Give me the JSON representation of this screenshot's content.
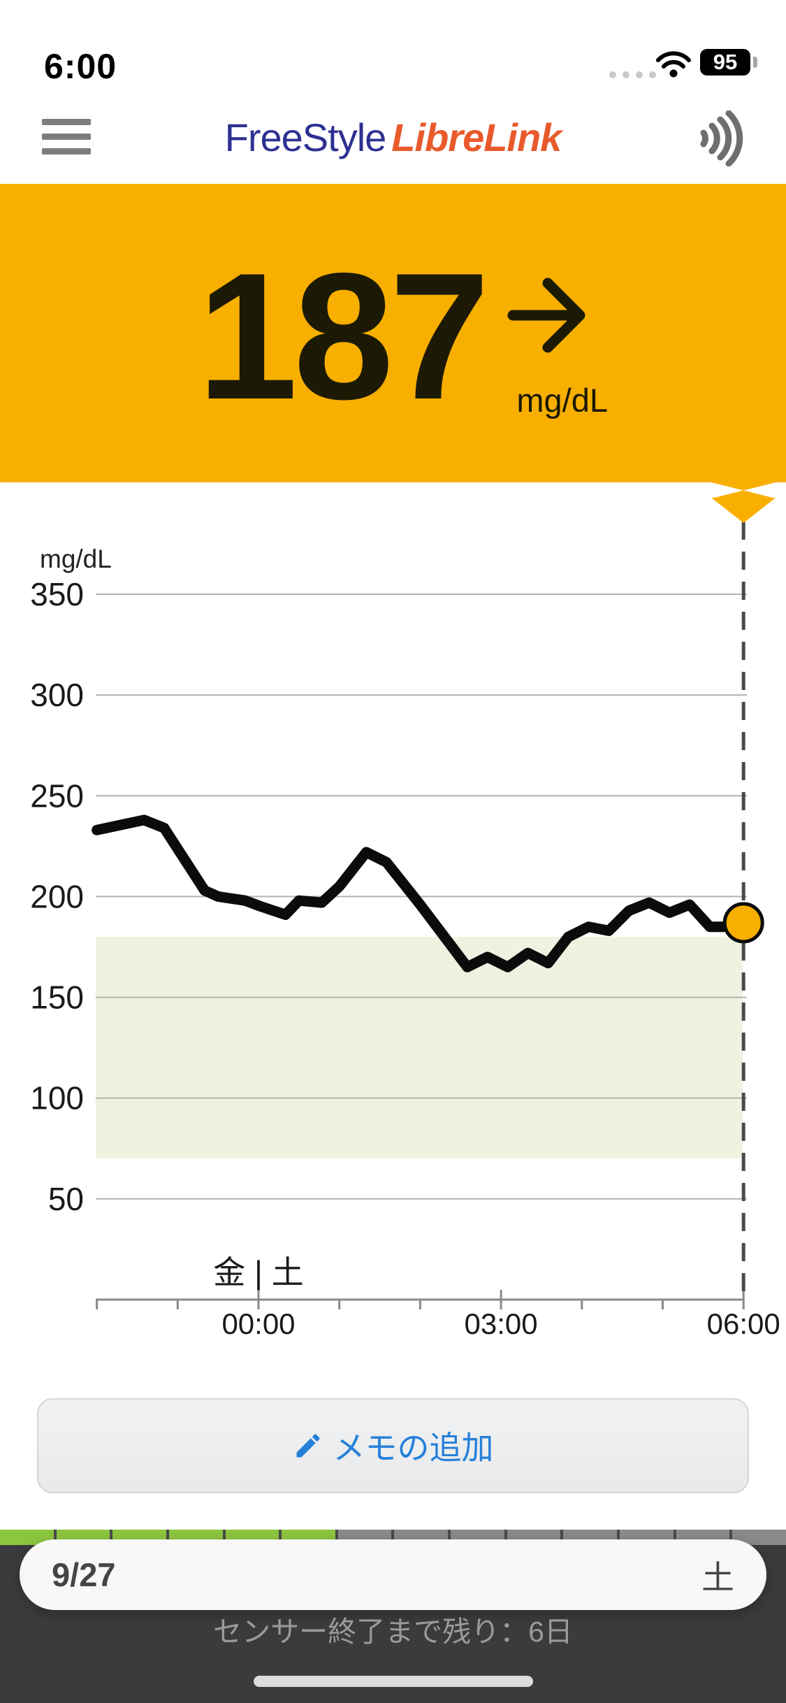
{
  "status_bar": {
    "time": "6:00",
    "battery": "95"
  },
  "header": {
    "brand_primary": "FreeStyle",
    "brand_secondary": "LibreLink"
  },
  "reading": {
    "value": "187",
    "unit": "mg/dL",
    "trend": "steady-right-arrow"
  },
  "colors": {
    "accent": "#f9af00",
    "target_band": "#edf3e0",
    "line": "#0b0b0b",
    "grid": "#b3b3b3",
    "dashed": "#4a4a4a",
    "note_blue": "#2680d9",
    "seg_green": "#8cc63f",
    "seg_gray": "#8a8a8a"
  },
  "chart_data": {
    "type": "line",
    "title": "",
    "ylabel": "mg/dL",
    "unit_label": "mg/dL",
    "y_ticks": [
      350,
      300,
      250,
      200,
      150,
      100,
      50
    ],
    "ylim": [
      40,
      370
    ],
    "x_range_hours": [
      -2,
      6
    ],
    "x_tick_labels": [
      {
        "label": "00:00",
        "t": "00:00"
      },
      {
        "label": "03:00",
        "t": "03:00"
      },
      {
        "label": "06:00",
        "t": "06:00"
      }
    ],
    "day_boundary_label": "金 | 土",
    "day_boundary_t": "00:00",
    "grid": true,
    "legend": "none",
    "target_range": {
      "low": 70,
      "high": 180
    },
    "series": [
      {
        "name": "glucose",
        "points": [
          {
            "t": "22:00",
            "v": 233
          },
          {
            "t": "22:35",
            "v": 238
          },
          {
            "t": "22:50",
            "v": 234
          },
          {
            "t": "23:20",
            "v": 203
          },
          {
            "t": "23:30",
            "v": 200
          },
          {
            "t": "23:50",
            "v": 198
          },
          {
            "t": "00:02",
            "v": 195
          },
          {
            "t": "00:20",
            "v": 191
          },
          {
            "t": "00:30",
            "v": 198
          },
          {
            "t": "00:47",
            "v": 197
          },
          {
            "t": "01:00",
            "v": 205
          },
          {
            "t": "01:20",
            "v": 222
          },
          {
            "t": "01:35",
            "v": 217
          },
          {
            "t": "02:00",
            "v": 196
          },
          {
            "t": "02:35",
            "v": 165
          },
          {
            "t": "02:50",
            "v": 170
          },
          {
            "t": "03:05",
            "v": 165
          },
          {
            "t": "03:20",
            "v": 172
          },
          {
            "t": "03:35",
            "v": 167
          },
          {
            "t": "03:50",
            "v": 180
          },
          {
            "t": "04:05",
            "v": 185
          },
          {
            "t": "04:20",
            "v": 183
          },
          {
            "t": "04:35",
            "v": 193
          },
          {
            "t": "04:50",
            "v": 197
          },
          {
            "t": "05:05",
            "v": 192
          },
          {
            "t": "05:20",
            "v": 196
          },
          {
            "t": "05:35",
            "v": 185
          },
          {
            "t": "05:45",
            "v": 185
          },
          {
            "t": "06:00",
            "v": 187
          }
        ]
      }
    ],
    "current_point": {
      "t": "06:00",
      "v": 187
    }
  },
  "actions": {
    "add_note_label": "メモの追加"
  },
  "footer": {
    "date": "9/27",
    "weekday": "土",
    "sensor_note": "センサー終了まで残り：6日",
    "sensor_bar": {
      "total_segments": 14,
      "filled_segments": 6
    }
  }
}
